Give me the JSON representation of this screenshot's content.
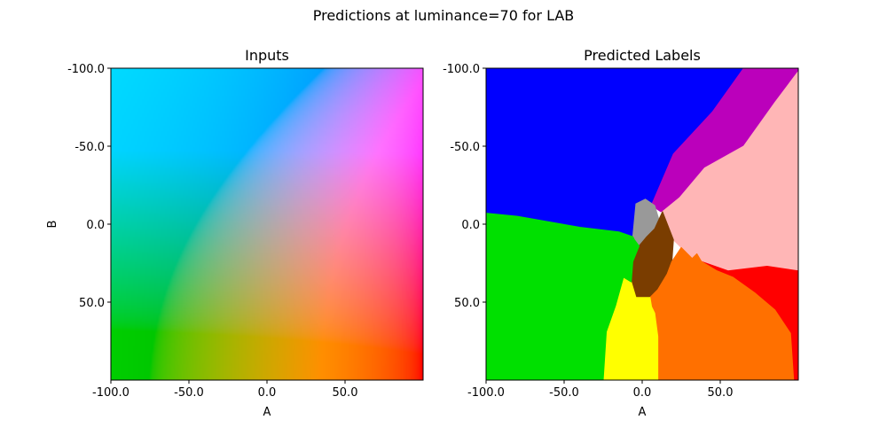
{
  "figure": {
    "title": "Predictions at luminance=70 for LAB"
  },
  "chart_data": [
    {
      "type": "heatmap",
      "title": "Inputs",
      "xlabel": "A",
      "ylabel": "B",
      "xlim": [
        -100,
        100
      ],
      "ylim": [
        -100,
        100
      ],
      "y_inverted": true,
      "x_ticks": [
        -100,
        -50,
        0,
        50
      ],
      "y_ticks": [
        -100,
        -50,
        0,
        50
      ],
      "x_tick_labels": [
        "-100.0",
        "-50.0",
        "0.0",
        "50.0"
      ],
      "y_tick_labels": [
        "-100.0",
        "-50.0",
        "0.0",
        "50.0"
      ],
      "luminance": 70,
      "color_space": "LAB",
      "rendering": "LAB to sRGB color field at L=70, clipped"
    },
    {
      "type": "heatmap",
      "title": "Predicted Labels",
      "xlabel": "A",
      "ylabel": "",
      "xlim": [
        -100,
        100
      ],
      "ylim": [
        -100,
        100
      ],
      "y_inverted": true,
      "x_ticks": [
        -100,
        -50,
        0,
        50
      ],
      "y_ticks": [
        -100,
        -50,
        0,
        50
      ],
      "x_tick_labels": [
        "-100.0",
        "-50.0",
        "0.0",
        "50.0"
      ],
      "y_tick_labels": [
        "-100.0",
        "-50.0",
        "0.0",
        "50.0"
      ],
      "class_colors": {
        "blue": "#0000ff",
        "purple": "#bb00bb",
        "pink": "#ffb6b6",
        "gray": "#999999",
        "brown": "#7a3d00",
        "red": "#ff0000",
        "orange": "#ff7000",
        "yellow": "#ffff00",
        "green": "#00e000"
      },
      "regions": [
        {
          "label": "blue",
          "polygon": [
            [
              -100,
              -100
            ],
            [
              65,
              -100
            ],
            [
              45,
              -72
            ],
            [
              20,
              -45
            ],
            [
              5,
              -10
            ],
            [
              -6,
              8
            ],
            [
              -15,
              5
            ],
            [
              -40,
              2
            ],
            [
              -80,
              -5
            ],
            [
              -100,
              -7
            ]
          ]
        },
        {
          "label": "purple",
          "polygon": [
            [
              65,
              -100
            ],
            [
              100,
              -100
            ],
            [
              100,
              -98
            ],
            [
              85,
              -78
            ],
            [
              65,
              -50
            ],
            [
              40,
              -36
            ],
            [
              24,
              -17
            ],
            [
              12,
              -8
            ],
            [
              6,
              -12
            ],
            [
              5,
              -10
            ],
            [
              20,
              -45
            ],
            [
              45,
              -72
            ]
          ]
        },
        {
          "label": "pink",
          "polygon": [
            [
              100,
              -98
            ],
            [
              100,
              30
            ],
            [
              80,
              27
            ],
            [
              55,
              30
            ],
            [
              38,
              24
            ],
            [
              35,
              19
            ],
            [
              32,
              22
            ],
            [
              25,
              15
            ],
            [
              20,
              10
            ],
            [
              13,
              -8
            ],
            [
              24,
              -17
            ],
            [
              40,
              -36
            ],
            [
              65,
              -50
            ],
            [
              85,
              -78
            ]
          ]
        },
        {
          "label": "gray",
          "polygon": [
            [
              -6,
              8
            ],
            [
              -4,
              -13
            ],
            [
              2,
              -16
            ],
            [
              8,
              -12
            ],
            [
              11,
              -2
            ],
            [
              8,
              3
            ],
            [
              3,
              8
            ],
            [
              -2,
              14
            ],
            [
              -5,
              10
            ]
          ]
        },
        {
          "label": "brown",
          "polygon": [
            [
              -2,
              14
            ],
            [
              3,
              8
            ],
            [
              8,
              3
            ],
            [
              13,
              -8
            ],
            [
              20,
              10
            ],
            [
              19,
              24
            ],
            [
              16,
              32
            ],
            [
              10,
              42
            ],
            [
              5,
              47
            ],
            [
              -4,
              47
            ],
            [
              -7,
              37
            ],
            [
              -6,
              24
            ]
          ]
        },
        {
          "label": "red",
          "polygon": [
            [
              38,
              24
            ],
            [
              55,
              30
            ],
            [
              80,
              27
            ],
            [
              100,
              30
            ],
            [
              100,
              100
            ],
            [
              97,
              100
            ],
            [
              95,
              70
            ],
            [
              85,
              55
            ],
            [
              72,
              44
            ],
            [
              58,
              34
            ],
            [
              48,
              30
            ]
          ]
        },
        {
          "label": "orange",
          "polygon": [
            [
              5,
              47
            ],
            [
              10,
              42
            ],
            [
              16,
              32
            ],
            [
              19,
              24
            ],
            [
              25,
              15
            ],
            [
              32,
              22
            ],
            [
              35,
              19
            ],
            [
              38,
              24
            ],
            [
              48,
              30
            ],
            [
              58,
              34
            ],
            [
              72,
              44
            ],
            [
              85,
              55
            ],
            [
              95,
              70
            ],
            [
              97,
              100
            ],
            [
              10,
              100
            ],
            [
              10,
              72
            ],
            [
              8,
              57
            ],
            [
              6,
              53
            ]
          ]
        },
        {
          "label": "yellow",
          "polygon": [
            [
              -7,
              37
            ],
            [
              -4,
              47
            ],
            [
              5,
              47
            ],
            [
              6,
              53
            ],
            [
              8,
              57
            ],
            [
              10,
              72
            ],
            [
              10,
              100
            ],
            [
              -25,
              100
            ],
            [
              -23,
              69
            ],
            [
              -17,
              52
            ],
            [
              -12,
              34
            ]
          ]
        },
        {
          "label": "green",
          "polygon": [
            [
              -100,
              -7
            ],
            [
              -80,
              -5
            ],
            [
              -40,
              2
            ],
            [
              -15,
              5
            ],
            [
              -6,
              8
            ],
            [
              -5,
              10
            ],
            [
              -2,
              14
            ],
            [
              -6,
              24
            ],
            [
              -7,
              37
            ],
            [
              -12,
              34
            ],
            [
              -17,
              52
            ],
            [
              -23,
              69
            ],
            [
              -25,
              100
            ],
            [
              -100,
              100
            ]
          ]
        }
      ]
    }
  ]
}
